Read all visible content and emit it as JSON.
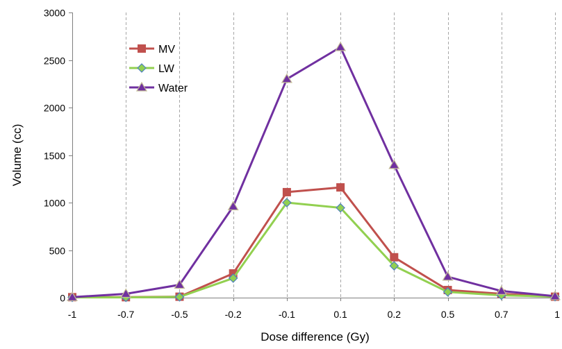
{
  "chart_data": {
    "type": "line",
    "title": "",
    "xlabel": "Dose difference (Gy)",
    "ylabel": "Volume (cc)",
    "categories": [
      "-1",
      "-0.7",
      "-0.5",
      "-0.2",
      "-0.1",
      "0.1",
      "0.2",
      "0.5",
      "0.7",
      "1"
    ],
    "ylim": [
      0,
      3000
    ],
    "yticks": [
      "0",
      "500",
      "1000",
      "1500",
      "2000",
      "2500",
      "3000"
    ],
    "grid": "vertical dashed",
    "legend_position": "top-left",
    "series": [
      {
        "name": "MV",
        "color": "#c0504d",
        "marker": "square",
        "values": [
          5,
          5,
          10,
          255,
          1110,
          1160,
          425,
          80,
          40,
          10
        ]
      },
      {
        "name": "LW",
        "color": "#92d050",
        "marker": "diamond",
        "values": [
          3,
          3,
          8,
          205,
          1000,
          945,
          335,
          60,
          25,
          10
        ]
      },
      {
        "name": "Water",
        "color": "#7030a0",
        "marker": "triangle",
        "values": [
          5,
          40,
          135,
          960,
          2300,
          2635,
          1395,
          220,
          70,
          15
        ]
      }
    ]
  }
}
